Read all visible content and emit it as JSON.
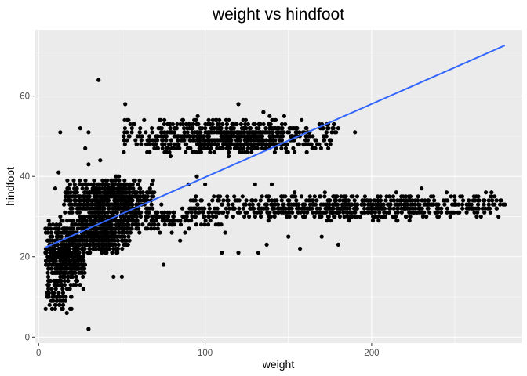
{
  "chart_data": {
    "type": "scatter",
    "title": "weight vs hindfoot",
    "xlabel": "weight",
    "ylabel": "hindfoot",
    "xlim": [
      -2,
      290
    ],
    "ylim": [
      -1.5,
      76.5
    ],
    "xticks": [
      0,
      100,
      200
    ],
    "yticks": [
      0,
      20,
      40,
      60
    ],
    "grid": true,
    "colors": {
      "panel": "#EBEBEB",
      "grid": "#FFFFFF",
      "points": "#000000",
      "trend": "#3366FF"
    },
    "trend_line": {
      "x": [
        4,
        280
      ],
      "y": [
        22.3,
        72.6
      ]
    },
    "clusters": [
      {
        "x": [
          4,
          28
        ],
        "y": [
          11,
          30
        ],
        "n": 520
      },
      {
        "x": [
          20,
          55
        ],
        "y": [
          20,
          30
        ],
        "n": 280
      },
      {
        "x": [
          15,
          70
        ],
        "y": [
          30,
          40
        ],
        "n": 620
      },
      {
        "x": [
          22,
          60
        ],
        "y": [
          24,
          33
        ],
        "n": 240
      },
      {
        "x": [
          35,
          110
        ],
        "y": [
          26,
          33
        ],
        "n": 160
      },
      {
        "x": [
          90,
          280
        ],
        "y": [
          29,
          36
        ],
        "n": 650
      },
      {
        "x": [
          50,
          180
        ],
        "y": [
          45,
          55
        ],
        "n": 750
      },
      {
        "x": [
          4,
          20
        ],
        "y": [
          6,
          14
        ],
        "n": 60
      }
    ],
    "outliers": [
      {
        "x": 36,
        "y": 64
      },
      {
        "x": 52,
        "y": 58
      },
      {
        "x": 30,
        "y": 2
      },
      {
        "x": 13,
        "y": 51
      },
      {
        "x": 25,
        "y": 52
      },
      {
        "x": 30,
        "y": 51
      },
      {
        "x": 28,
        "y": 47
      },
      {
        "x": 37,
        "y": 44
      },
      {
        "x": 30,
        "y": 43
      },
      {
        "x": 45,
        "y": 15
      },
      {
        "x": 50,
        "y": 15
      },
      {
        "x": 75,
        "y": 18
      },
      {
        "x": 110,
        "y": 21
      },
      {
        "x": 120,
        "y": 21
      },
      {
        "x": 132,
        "y": 21
      },
      {
        "x": 137,
        "y": 23
      },
      {
        "x": 150,
        "y": 25
      },
      {
        "x": 157,
        "y": 22
      },
      {
        "x": 170,
        "y": 25
      },
      {
        "x": 180,
        "y": 23
      },
      {
        "x": 185,
        "y": 31
      },
      {
        "x": 120,
        "y": 58
      },
      {
        "x": 135,
        "y": 56
      },
      {
        "x": 175,
        "y": 49
      },
      {
        "x": 190,
        "y": 51
      },
      {
        "x": 272,
        "y": 36
      },
      {
        "x": 280,
        "y": 33
      },
      {
        "x": 245,
        "y": 36
      },
      {
        "x": 250,
        "y": 34
      },
      {
        "x": 230,
        "y": 37
      },
      {
        "x": 215,
        "y": 29
      },
      {
        "x": 112,
        "y": 26
      },
      {
        "x": 100,
        "y": 38
      },
      {
        "x": 95,
        "y": 40
      },
      {
        "x": 90,
        "y": 38
      },
      {
        "x": 98,
        "y": 34
      },
      {
        "x": 130,
        "y": 38
      },
      {
        "x": 140,
        "y": 38
      },
      {
        "x": 85,
        "y": 24
      },
      {
        "x": 80,
        "y": 26
      },
      {
        "x": 10,
        "y": 37
      },
      {
        "x": 12,
        "y": 41
      }
    ]
  }
}
